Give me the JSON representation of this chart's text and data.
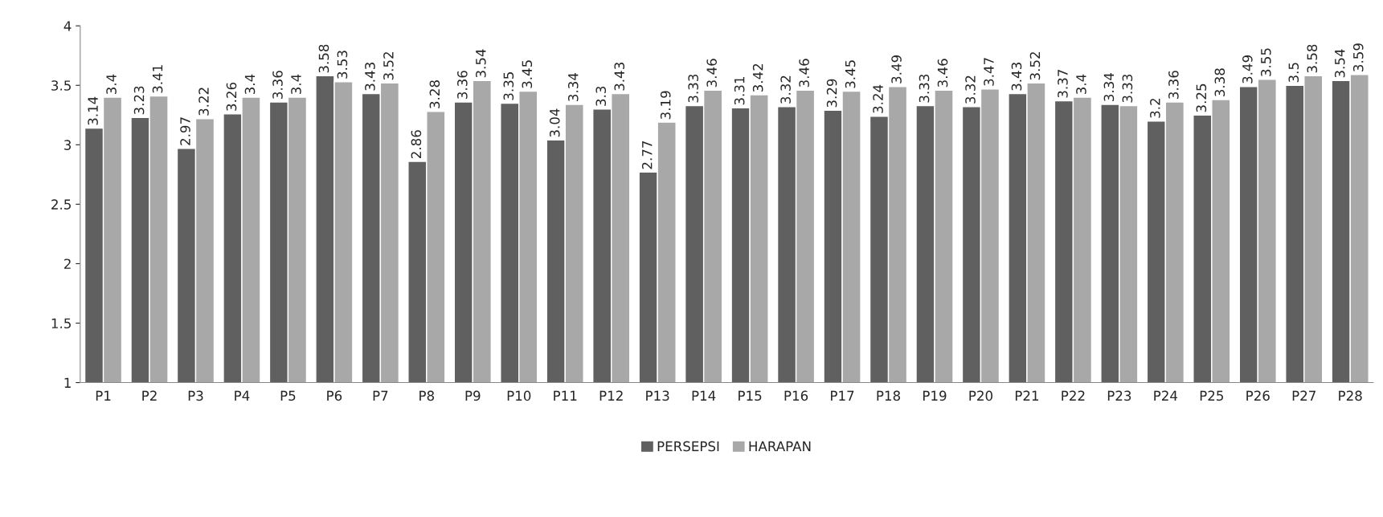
{
  "chart_data": {
    "type": "bar",
    "categories": [
      "P1",
      "P2",
      "P3",
      "P4",
      "P5",
      "P6",
      "P7",
      "P8",
      "P9",
      "P10",
      "P11",
      "P12",
      "P13",
      "P14",
      "P15",
      "P16",
      "P17",
      "P18",
      "P19",
      "P20",
      "P21",
      "P22",
      "P23",
      "P24",
      "P25",
      "P26",
      "P27",
      "P28"
    ],
    "series": [
      {
        "name": "PERSEPSI",
        "color": "#606060",
        "values": [
          3.14,
          3.23,
          2.97,
          3.26,
          3.36,
          3.58,
          3.43,
          2.86,
          3.36,
          3.35,
          3.04,
          3.3,
          2.77,
          3.33,
          3.31,
          3.32,
          3.29,
          3.24,
          3.33,
          3.32,
          3.43,
          3.37,
          3.34,
          3.2,
          3.25,
          3.49,
          3.5,
          3.54
        ]
      },
      {
        "name": "HARAPAN",
        "color": "#a8a8a8",
        "values": [
          3.4,
          3.41,
          3.22,
          3.4,
          3.4,
          3.53,
          3.52,
          3.28,
          3.54,
          3.45,
          3.34,
          3.43,
          3.19,
          3.46,
          3.42,
          3.46,
          3.45,
          3.49,
          3.46,
          3.47,
          3.52,
          3.4,
          3.33,
          3.36,
          3.38,
          3.55,
          3.58,
          3.59
        ]
      }
    ],
    "ylim": [
      1,
      4
    ],
    "yticks": [
      1,
      1.5,
      2,
      2.5,
      3,
      3.5,
      4
    ],
    "data_labels": true,
    "grid": false,
    "legend": "bottom"
  }
}
